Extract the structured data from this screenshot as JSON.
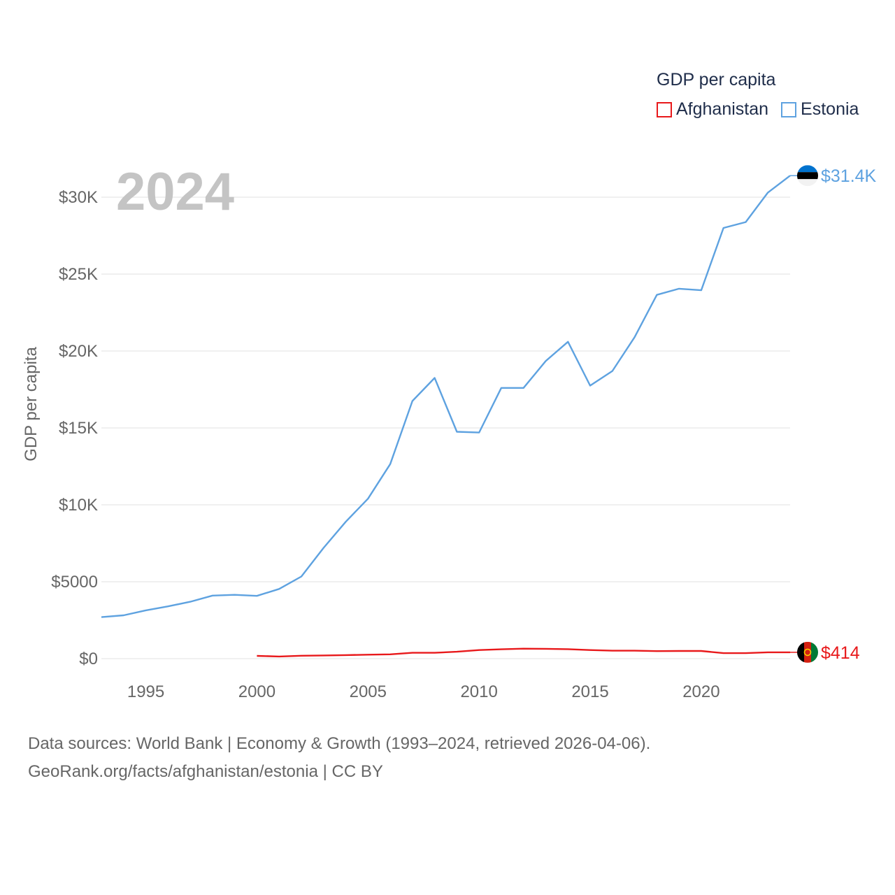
{
  "legend": {
    "title": "GDP per capita",
    "items": [
      {
        "label": "Afghanistan",
        "color": "#e8191b"
      },
      {
        "label": "Estonia",
        "color": "#5ea2e0"
      }
    ]
  },
  "year_label": "2024",
  "source": {
    "line1": "Data sources: World Bank | Economy & Growth (1993–2024, retrieved 2026-04-06).",
    "line2": "GeoRank.org/facts/afghanistan/estonia | CC BY"
  },
  "chart_data": {
    "type": "line",
    "title": "GDP per capita",
    "xlabel": "",
    "ylabel": "GDP per capita",
    "xlim": [
      1993,
      2024
    ],
    "ylim": [
      0,
      30000
    ],
    "grid": true,
    "legend_position": "top-right",
    "x_ticks": [
      1995,
      2000,
      2005,
      2010,
      2015,
      2020
    ],
    "x_tick_labels": [
      "1995",
      "2000",
      "2005",
      "2010",
      "2015",
      "2020"
    ],
    "y_ticks": [
      0,
      5000,
      10000,
      15000,
      20000,
      25000,
      30000
    ],
    "y_tick_labels": [
      "$0",
      "$5000",
      "$10K",
      "$15K",
      "$20K",
      "$25K",
      "$30K"
    ],
    "series": [
      {
        "name": "Estonia",
        "color": "#5ea2e0",
        "x": [
          1993,
          1994,
          1995,
          1996,
          1997,
          1998,
          1999,
          2000,
          2001,
          2002,
          2003,
          2004,
          2005,
          2006,
          2007,
          2008,
          2009,
          2010,
          2011,
          2012,
          2013,
          2014,
          2015,
          2016,
          2017,
          2018,
          2019,
          2020,
          2021,
          2022,
          2023,
          2024
        ],
        "values": [
          2700,
          2820,
          3140,
          3400,
          3700,
          4100,
          4150,
          4080,
          4530,
          5340,
          7200,
          8900,
          10400,
          12650,
          16750,
          18250,
          14750,
          14700,
          17600,
          17600,
          19350,
          20600,
          17750,
          18700,
          20900,
          23650,
          24050,
          23950,
          28000,
          28380,
          30300,
          31400
        ],
        "end_label": "$31.4K",
        "flag_icon": "estonia-flag-icon"
      },
      {
        "name": "Afghanistan",
        "color": "#e8191b",
        "x": [
          2000,
          2001,
          2002,
          2003,
          2004,
          2005,
          2006,
          2007,
          2008,
          2009,
          2010,
          2011,
          2012,
          2013,
          2014,
          2015,
          2016,
          2017,
          2018,
          2019,
          2020,
          2021,
          2022,
          2023,
          2024
        ],
        "values": [
          180,
          140,
          190,
          210,
          230,
          260,
          280,
          380,
          380,
          450,
          560,
          610,
          650,
          640,
          620,
          560,
          520,
          520,
          490,
          500,
          500,
          360,
          360,
          414,
          414
        ],
        "end_label": "$414",
        "flag_icon": "afghanistan-flag-icon"
      }
    ]
  }
}
